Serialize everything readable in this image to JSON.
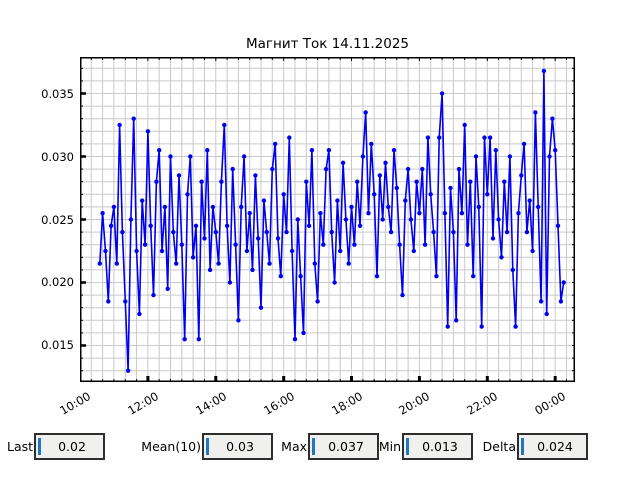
{
  "colors": {
    "series": "#0000f0",
    "grid": "#c9c9c9",
    "spine": "#000000",
    "cursor": "#2077c0",
    "box_bg": "#f0f0ef",
    "box_border": "#2e2e2e"
  },
  "chart_data": {
    "type": "line",
    "title": "Магнит Ток 14.11.2025",
    "marker": "circle",
    "legend": "none",
    "grid": "on",
    "series_name": "magnet-current",
    "x_axis": {
      "range_hours": [
        10.0,
        24.5833
      ],
      "major_tick_hours": [
        10,
        12,
        14,
        16,
        18,
        20,
        22,
        24
      ],
      "major_tick_labels": [
        "10:00",
        "12:00",
        "14:00",
        "16:00",
        "18:00",
        "20:00",
        "22:00",
        "00:00"
      ],
      "minor_step_minutes": 20
    },
    "y_axis": {
      "range": [
        0.0121,
        0.0379
      ],
      "major_ticks": [
        0.015,
        0.02,
        0.025,
        0.03,
        0.035
      ],
      "major_tick_labels": [
        "0.015",
        "0.020",
        "0.025",
        "0.030",
        "0.035"
      ],
      "minor_step": 0.001
    },
    "start_hour": 10.5833,
    "step_minutes": 5,
    "values": [
      0.0215,
      0.0255,
      0.0225,
      0.0185,
      0.0245,
      0.026,
      0.0215,
      0.0325,
      0.024,
      0.0185,
      0.013,
      0.025,
      0.033,
      0.0225,
      0.0175,
      0.0265,
      0.023,
      0.032,
      0.0245,
      0.019,
      0.028,
      0.0305,
      0.0225,
      0.026,
      0.0195,
      0.03,
      0.024,
      0.0215,
      0.0285,
      0.023,
      0.0155,
      0.027,
      0.03,
      0.022,
      0.0245,
      0.0155,
      0.028,
      0.0235,
      0.0305,
      0.021,
      0.026,
      0.024,
      0.0215,
      0.028,
      0.0325,
      0.0245,
      0.02,
      0.029,
      0.023,
      0.017,
      0.026,
      0.03,
      0.0225,
      0.0255,
      0.021,
      0.0285,
      0.0235,
      0.018,
      0.0265,
      0.024,
      0.0215,
      0.029,
      0.031,
      0.0235,
      0.0205,
      0.027,
      0.024,
      0.0315,
      0.0225,
      0.0155,
      0.025,
      0.0205,
      0.016,
      0.028,
      0.0245,
      0.0305,
      0.0215,
      0.0185,
      0.0255,
      0.023,
      0.029,
      0.0305,
      0.024,
      0.02,
      0.0265,
      0.0225,
      0.0295,
      0.025,
      0.0215,
      0.026,
      0.023,
      0.028,
      0.0245,
      0.03,
      0.0335,
      0.0255,
      0.031,
      0.027,
      0.0205,
      0.0285,
      0.025,
      0.0295,
      0.026,
      0.024,
      0.0305,
      0.0275,
      0.023,
      0.019,
      0.0265,
      0.029,
      0.025,
      0.0225,
      0.028,
      0.0255,
      0.029,
      0.023,
      0.0315,
      0.027,
      0.024,
      0.0205,
      0.0315,
      0.035,
      0.0255,
      0.0165,
      0.0275,
      0.024,
      0.017,
      0.029,
      0.0255,
      0.0325,
      0.023,
      0.028,
      0.0205,
      0.03,
      0.026,
      0.0165,
      0.0315,
      0.027,
      0.0315,
      0.0235,
      0.0305,
      0.025,
      0.022,
      0.028,
      0.024,
      0.03,
      0.021,
      0.0165,
      0.0255,
      0.0285,
      0.031,
      0.024,
      0.0265,
      0.0225,
      0.0335,
      0.026,
      0.0185,
      0.0368,
      0.0175,
      0.03,
      0.033,
      0.0305,
      0.0245,
      0.0185,
      0.02
    ]
  },
  "stats": [
    {
      "label": "Last",
      "value": "0.02"
    },
    {
      "label": "Mean(10)",
      "value": "0.03"
    },
    {
      "label": "Max",
      "value": "0.037"
    },
    {
      "label": "Min",
      "value": "0.013"
    },
    {
      "label": "Delta",
      "value": "0.024"
    }
  ]
}
